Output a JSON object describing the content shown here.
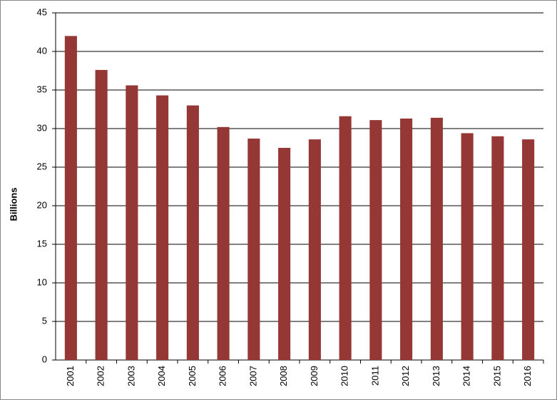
{
  "chart_data": {
    "type": "bar",
    "y_label": "Billions",
    "categories": [
      "2001",
      "2002",
      "2003",
      "2004",
      "2005",
      "2006",
      "2007",
      "2008",
      "2009",
      "2010",
      "2011",
      "2012",
      "2013",
      "2014",
      "2015",
      "2016"
    ],
    "values": [
      42.0,
      37.6,
      35.6,
      34.3,
      33.0,
      30.2,
      28.7,
      27.5,
      28.6,
      31.6,
      31.1,
      31.3,
      31.4,
      29.4,
      29.0,
      28.6
    ],
    "color": "#953735",
    "ylim": [
      0,
      45
    ],
    "yticks": [
      0,
      5,
      10,
      15,
      20,
      25,
      30,
      35,
      40,
      45
    ],
    "grid": true
  }
}
